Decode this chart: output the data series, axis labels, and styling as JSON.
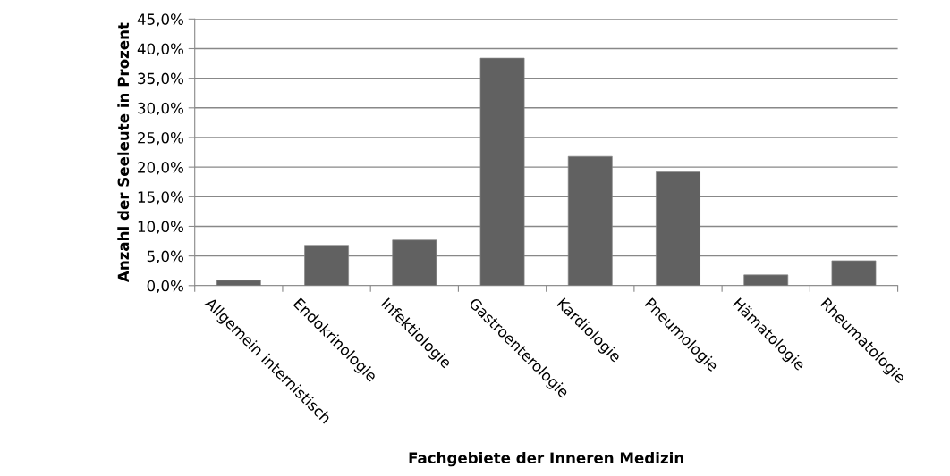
{
  "chart_data": {
    "type": "bar",
    "xlabel": "Fachgebiete der Inneren Medizin",
    "ylabel": "Anzahl der Seeleute in Prozent",
    "categories": [
      "Allgemein internistisch",
      "Endokrinologie",
      "Infektiologie",
      "Gastroenterologie",
      "Kardiologie",
      "Pneumologie",
      "Hämatologie",
      "Rheumatologie"
    ],
    "values": [
      0.9,
      6.8,
      7.7,
      38.4,
      21.8,
      19.2,
      1.8,
      4.2
    ],
    "color": "#616161",
    "ylim": [
      0,
      45
    ],
    "yticks": [
      {
        "value": 0,
        "label": "0,0%"
      },
      {
        "value": 5,
        "label": "5,0%"
      },
      {
        "value": 10,
        "label": "10,0%"
      },
      {
        "value": 15,
        "label": "15,0%"
      },
      {
        "value": 20,
        "label": "20,0%"
      },
      {
        "value": 25,
        "label": "25,0%"
      },
      {
        "value": 30,
        "label": "30,0%"
      },
      {
        "value": 35,
        "label": "35,0%"
      },
      {
        "value": 40,
        "label": "40,0%"
      },
      {
        "value": 45,
        "label": "45,0%"
      }
    ],
    "grid": "y",
    "legend": false
  }
}
